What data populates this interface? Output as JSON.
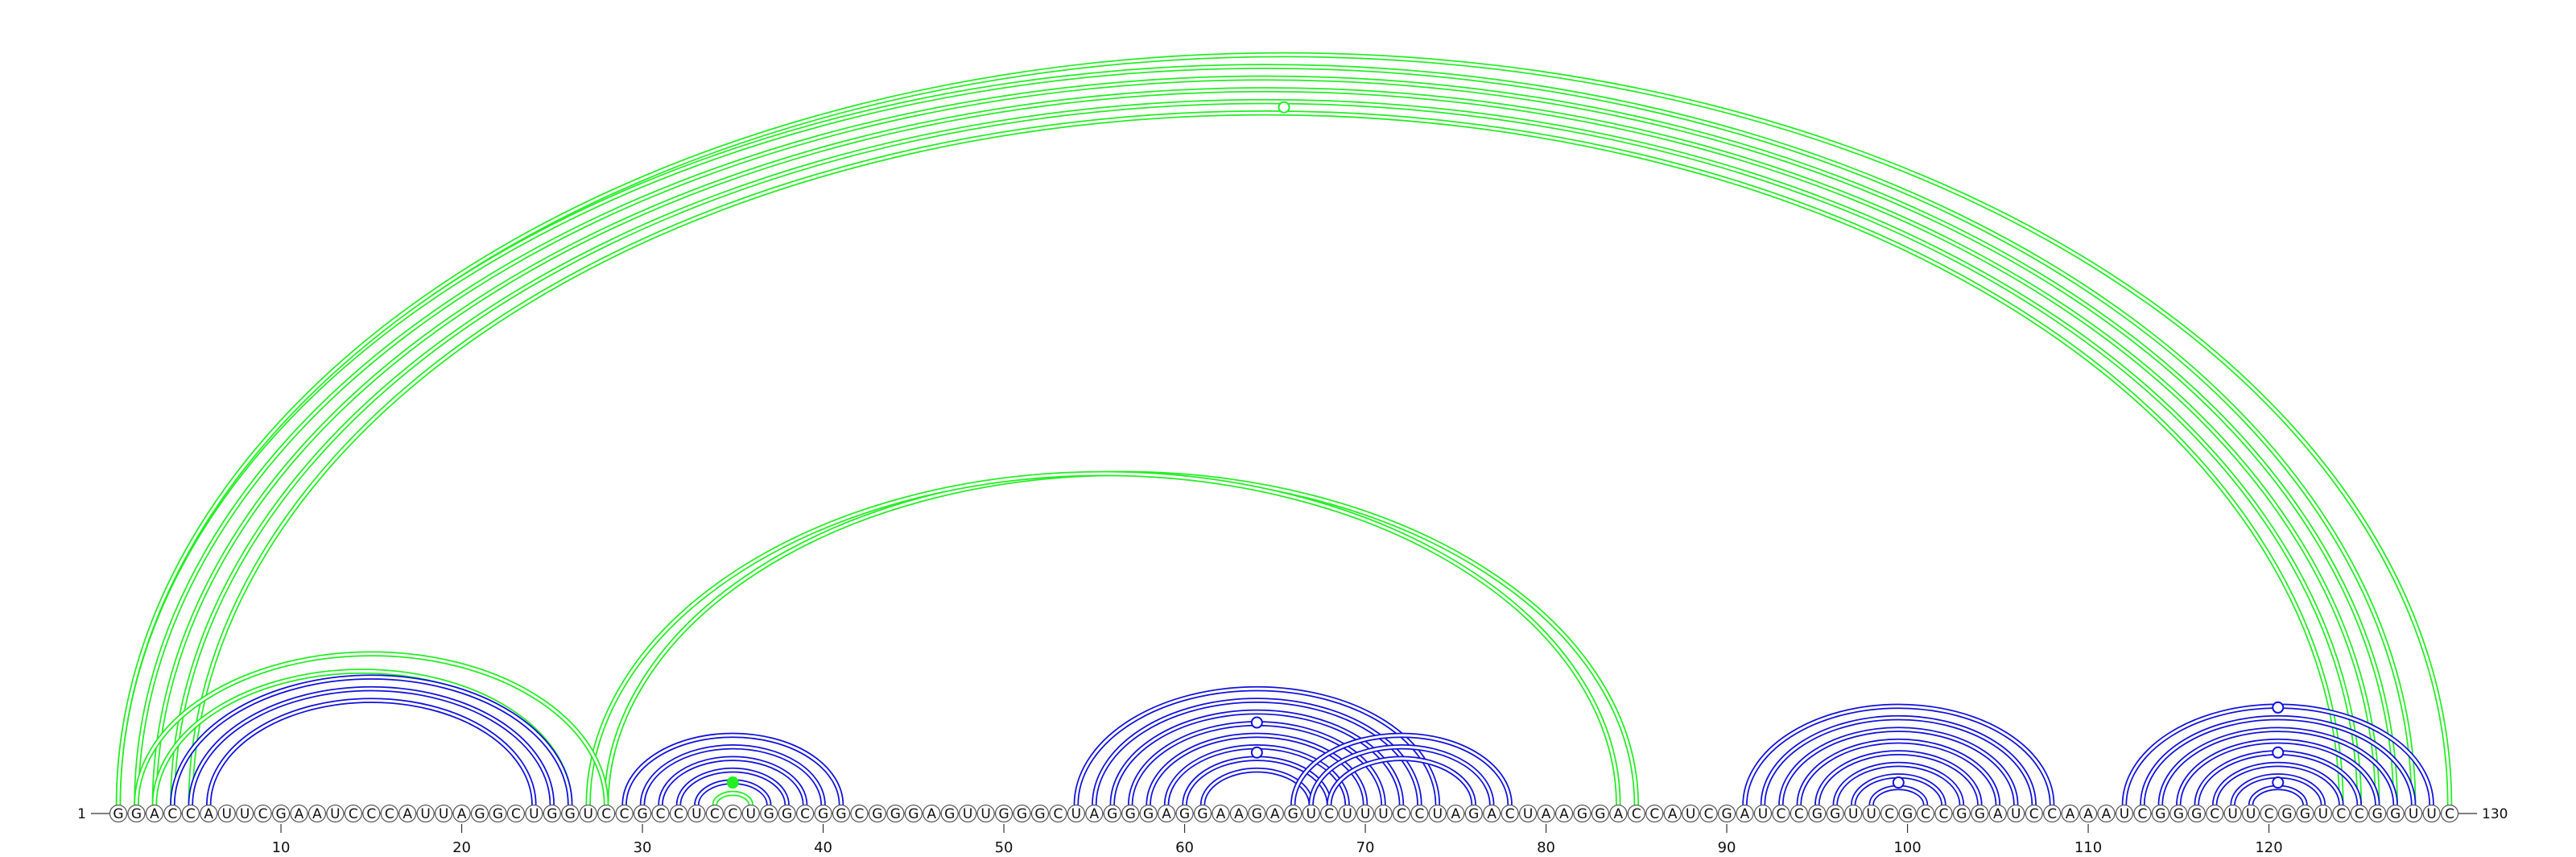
{
  "sequence": "GGACCAUUCGAAUCCCAUUAGGCUGGUCCGCCUCCUGGCGGCGGGAGUUGGGCUAGGGAGGAAGAGUCUUUCCUAGACUAAGGACCAUCGAUCCGGUUCGCCGGAUCCAAAUCGGGCUUCGGUCCGGUUC",
  "start_label": "1",
  "end_label": "130",
  "ticks": [
    "10",
    "20",
    "30",
    "40",
    "50",
    "60",
    "70",
    "80",
    "90",
    "100",
    "110",
    "120"
  ],
  "tick_positions": [
    10,
    20,
    30,
    40,
    50,
    60,
    70,
    80,
    90,
    100,
    110,
    120
  ],
  "colors": {
    "green": "#22ee22",
    "blue": "#1010dd",
    "base_stroke": "#555555",
    "text": "#111111"
  },
  "arcs_above": [
    {
      "i": 1,
      "j": 128,
      "color": "green"
    },
    {
      "i": 2,
      "j": 127,
      "color": "green"
    },
    {
      "i": 3,
      "j": 126,
      "color": "green"
    },
    {
      "i": 4,
      "j": 125,
      "color": "green"
    },
    {
      "i": 5,
      "j": 124,
      "color": "green"
    },
    {
      "i": 1,
      "j": 130,
      "color": "green"
    },
    {
      "i": 28,
      "j": 85,
      "color": "green"
    },
    {
      "i": 27,
      "j": 84,
      "color": "green"
    },
    {
      "i": 2,
      "j": 28,
      "color": "green"
    },
    {
      "i": 3,
      "j": 26,
      "color": "green"
    },
    {
      "i": 4,
      "j": 26,
      "color": "blue"
    },
    {
      "i": 5,
      "j": 25,
      "color": "blue"
    },
    {
      "i": 6,
      "j": 24,
      "color": "blue"
    },
    {
      "i": 29,
      "j": 41,
      "color": "blue"
    },
    {
      "i": 30,
      "j": 40,
      "color": "blue"
    },
    {
      "i": 31,
      "j": 39,
      "color": "blue"
    },
    {
      "i": 32,
      "j": 38,
      "color": "blue"
    },
    {
      "i": 33,
      "j": 37,
      "color": "blue"
    },
    {
      "i": 34,
      "j": 36,
      "color": "green"
    },
    {
      "i": 54,
      "j": 74,
      "color": "blue"
    },
    {
      "i": 55,
      "j": 73,
      "color": "blue"
    },
    {
      "i": 56,
      "j": 72,
      "color": "blue"
    },
    {
      "i": 57,
      "j": 71,
      "color": "blue"
    },
    {
      "i": 58,
      "j": 70,
      "color": "blue"
    },
    {
      "i": 59,
      "j": 69,
      "color": "blue"
    },
    {
      "i": 60,
      "j": 68,
      "color": "blue"
    },
    {
      "i": 61,
      "j": 67,
      "color": "blue"
    },
    {
      "i": 66,
      "j": 78,
      "color": "blue"
    },
    {
      "i": 67,
      "j": 77,
      "color": "blue"
    },
    {
      "i": 68,
      "j": 76,
      "color": "blue"
    },
    {
      "i": 91,
      "j": 108,
      "color": "blue"
    },
    {
      "i": 92,
      "j": 107,
      "color": "blue"
    },
    {
      "i": 93,
      "j": 106,
      "color": "blue"
    },
    {
      "i": 94,
      "j": 105,
      "color": "blue"
    },
    {
      "i": 95,
      "j": 104,
      "color": "blue"
    },
    {
      "i": 96,
      "j": 103,
      "color": "blue"
    },
    {
      "i": 97,
      "j": 102,
      "color": "blue"
    },
    {
      "i": 98,
      "j": 101,
      "color": "blue"
    },
    {
      "i": 112,
      "j": 129,
      "color": "blue"
    },
    {
      "i": 113,
      "j": 128,
      "color": "blue"
    },
    {
      "i": 114,
      "j": 127,
      "color": "blue"
    },
    {
      "i": 115,
      "j": 126,
      "color": "blue"
    },
    {
      "i": 116,
      "j": 125,
      "color": "blue"
    },
    {
      "i": 117,
      "j": 124,
      "color": "blue"
    },
    {
      "i": 118,
      "j": 123,
      "color": "blue"
    },
    {
      "i": 119,
      "j": 122,
      "color": "blue"
    }
  ],
  "markers": [
    {
      "x": 65.5,
      "h": 0.93,
      "color": "green",
      "filled": false
    },
    {
      "x": 35,
      "h": 0.03,
      "color": "green",
      "filled": true
    },
    {
      "x": 64,
      "h": 0.11,
      "color": "blue",
      "filled": false
    },
    {
      "x": 64,
      "h": 0.07,
      "color": "blue",
      "filled": false
    },
    {
      "x": 99.5,
      "h": 0.03,
      "color": "blue",
      "filled": false
    },
    {
      "x": 120.5,
      "h": 0.13,
      "color": "blue",
      "filled": false
    },
    {
      "x": 120.5,
      "h": 0.07,
      "color": "blue",
      "filled": false
    },
    {
      "x": 120.5,
      "h": 0.03,
      "color": "blue",
      "filled": false
    }
  ]
}
